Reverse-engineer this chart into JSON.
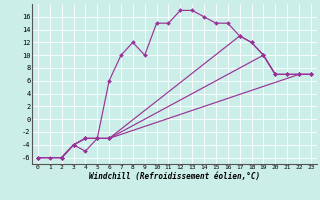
{
  "xlabel": "Windchill (Refroidissement éolien,°C)",
  "background_color": "#cceee8",
  "grid_color": "#ffffff",
  "line_color": "#993399",
  "xlim": [
    -0.5,
    23.5
  ],
  "ylim": [
    -7,
    18
  ],
  "xticks": [
    0,
    1,
    2,
    3,
    4,
    5,
    6,
    7,
    8,
    9,
    10,
    11,
    12,
    13,
    14,
    15,
    16,
    17,
    18,
    19,
    20,
    21,
    22,
    23
  ],
  "yticks": [
    -6,
    -4,
    -2,
    0,
    2,
    4,
    6,
    8,
    10,
    12,
    14,
    16
  ],
  "lines": [
    {
      "x": [
        0,
        1,
        2,
        3,
        4,
        5,
        6,
        7,
        8,
        9,
        10,
        11,
        12,
        13,
        14,
        15,
        16,
        17,
        18,
        19,
        20,
        21,
        22,
        23
      ],
      "y": [
        -6,
        -6,
        -6,
        -4,
        -5,
        -3,
        6,
        10,
        12,
        10,
        15,
        15,
        17,
        17,
        16,
        15,
        15,
        13,
        12,
        10,
        7,
        7,
        7,
        7
      ]
    },
    {
      "x": [
        0,
        2,
        3,
        4,
        5,
        6,
        22,
        23
      ],
      "y": [
        -6,
        -6,
        -4,
        -3,
        -3,
        -3,
        7,
        7
      ]
    },
    {
      "x": [
        0,
        2,
        3,
        4,
        5,
        6,
        19,
        20,
        21,
        22,
        23
      ],
      "y": [
        -6,
        -6,
        -4,
        -3,
        -3,
        -3,
        10,
        7,
        7,
        7,
        7
      ]
    },
    {
      "x": [
        0,
        2,
        3,
        4,
        5,
        6,
        17,
        18,
        19,
        20,
        21,
        22,
        23
      ],
      "y": [
        -6,
        -6,
        -4,
        -3,
        -3,
        -3,
        13,
        12,
        10,
        7,
        7,
        7,
        7
      ]
    }
  ]
}
